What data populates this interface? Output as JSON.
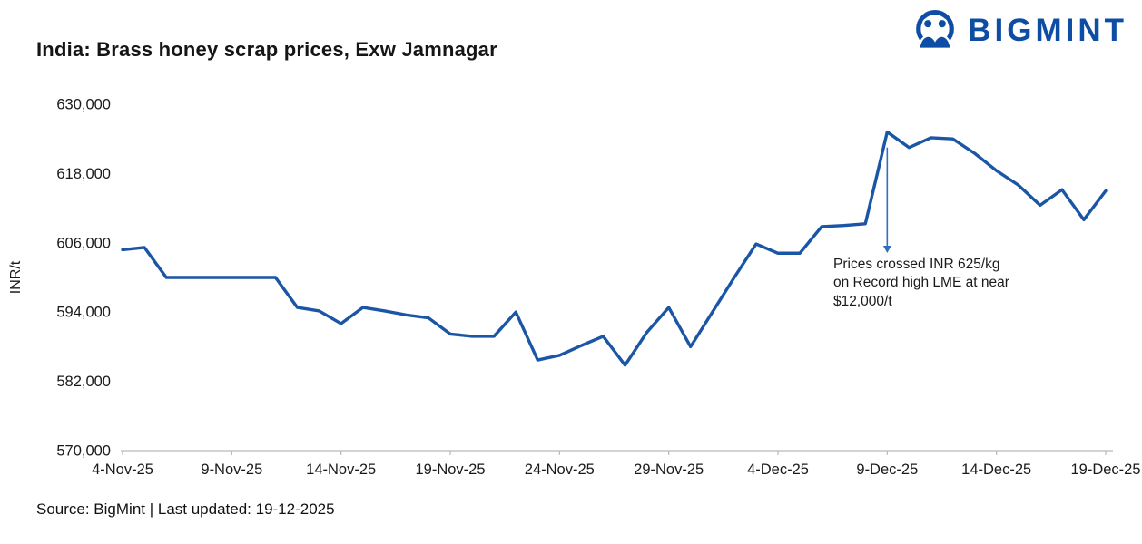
{
  "header": {
    "title": "India: Brass honey scrap prices, Exw Jamnagar",
    "brand": "BIGMINT",
    "brand_color": "#0e4da4"
  },
  "chart_data": {
    "type": "line",
    "title": "India: Brass honey scrap prices, Exw Jamnagar",
    "xlabel": "",
    "ylabel": "INR/t",
    "ylim": [
      570000,
      630000
    ],
    "yticks": [
      570000,
      582000,
      594000,
      606000,
      618000,
      630000
    ],
    "grid": false,
    "legend": "none",
    "line_color": "#1a56a5",
    "x": [
      "4-Nov-25",
      "5-Nov-25",
      "6-Nov-25",
      "7-Nov-25",
      "8-Nov-25",
      "9-Nov-25",
      "10-Nov-25",
      "11-Nov-25",
      "12-Nov-25",
      "13-Nov-25",
      "14-Nov-25",
      "15-Nov-25",
      "16-Nov-25",
      "17-Nov-25",
      "18-Nov-25",
      "19-Nov-25",
      "20-Nov-25",
      "21-Nov-25",
      "22-Nov-25",
      "23-Nov-25",
      "24-Nov-25",
      "25-Nov-25",
      "26-Nov-25",
      "27-Nov-25",
      "28-Nov-25",
      "29-Nov-25",
      "30-Nov-25",
      "1-Dec-25",
      "2-Dec-25",
      "3-Dec-25",
      "4-Dec-25",
      "5-Dec-25",
      "6-Dec-25",
      "7-Dec-25",
      "8-Dec-25",
      "9-Dec-25",
      "10-Dec-25",
      "11-Dec-25",
      "12-Dec-25",
      "13-Dec-25",
      "14-Dec-25",
      "15-Dec-25",
      "16-Dec-25",
      "17-Dec-25",
      "18-Dec-25",
      "19-Dec-25"
    ],
    "values": [
      604800,
      605200,
      600000,
      600000,
      600000,
      600000,
      600000,
      600000,
      594800,
      594200,
      592000,
      594800,
      594200,
      593500,
      593000,
      590200,
      589800,
      589800,
      594000,
      585700,
      586500,
      588200,
      589800,
      584800,
      590500,
      594800,
      588000,
      594000,
      600000,
      605800,
      604200,
      604200,
      608800,
      609000,
      609300,
      625200,
      622500,
      624200,
      624000,
      621500,
      618500,
      616000,
      612500,
      615200,
      610000,
      615000
    ],
    "xticks": [
      "4-Nov-25",
      "9-Nov-25",
      "14-Nov-25",
      "19-Nov-25",
      "24-Nov-25",
      "29-Nov-25",
      "4-Dec-25",
      "9-Dec-25",
      "14-Dec-25",
      "19-Dec-25"
    ],
    "xtick_positions": [
      0,
      5,
      10,
      15,
      20,
      25,
      30,
      35,
      40,
      45
    ],
    "annotation": {
      "text": "Prices crossed INR 625/kg\non Record high LME at near\n$12,000/t",
      "x_index": 35,
      "arrow_from": 622500,
      "arrow_to": 605500,
      "arrow_color": "#2e6fbe"
    }
  },
  "footer": {
    "source_text": "Source: BigMint | Last updated: 19-12-2025"
  }
}
